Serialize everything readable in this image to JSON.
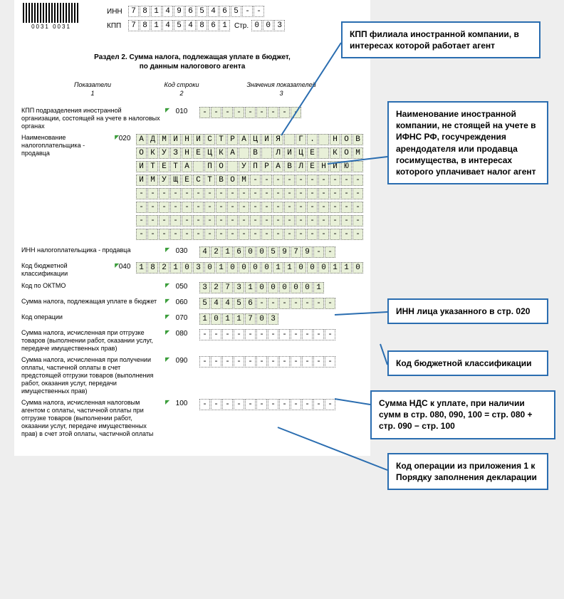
{
  "barcode_number": "0031 0031",
  "header": {
    "inn_label": "ИНН",
    "inn_value": "7814965465--",
    "kpp_label": "КПП",
    "kpp_value": "781454861",
    "str_label": "Стр.",
    "str_value": "003"
  },
  "section_title_line1": "Раздел 2. Сумма налога, подлежащая уплате в бюджет,",
  "section_title_line2": "по данным налогового агента",
  "col_headers": {
    "c1": "Показатели",
    "c2": "Код строки",
    "c3": "Значения показателей"
  },
  "col_nums": {
    "c1": "1",
    "c2": "2",
    "c3": "3"
  },
  "rows": {
    "r010": {
      "desc": "КПП подразделения иностранной организации, состоящей на учете в налоговых органах",
      "code": "010",
      "value": "---------",
      "len": 9,
      "green": true
    },
    "r020": {
      "desc": "Наименование налогоплательщика - продавца",
      "code": "020",
      "lines": [
        "АДМИНИСТРАЦИЯ Г. НОВ",
        "ОКУЗНЕЦКА В ЛИЦЕ КОМ",
        "ИТЕТА ПО УПРАВЛЕНИЮ ",
        "ИМУЩЕСТВОМ----------",
        "--------------------",
        "--------------------",
        "--------------------",
        "--------------------"
      ],
      "len": 20,
      "green": true
    },
    "r030": {
      "desc": "ИНН налогоплательщика - продавца",
      "code": "030",
      "value": "4216005979--",
      "len": 12,
      "green": true
    },
    "r040": {
      "desc": "Код бюджетной классификации",
      "code": "040",
      "value": "18210301000011000110",
      "len": 20,
      "green": true
    },
    "r050": {
      "desc": "Код по ОКТМО",
      "code": "050",
      "value": "32731000001",
      "len": 11,
      "green": true
    },
    "r060": {
      "desc": "Сумма налога, подлежащая уплате в бюджет",
      "code": "060",
      "value": "54456-------",
      "len": 12,
      "green": true
    },
    "r070": {
      "desc": "Код операции",
      "code": "070",
      "value": "1011703",
      "len": 7,
      "green": true
    },
    "r080": {
      "desc": "Сумма налога, исчисленная при отгрузке товаров (выполнении работ, оказании услуг, передаче имущественных прав)",
      "code": "080",
      "value": "------------",
      "len": 12,
      "green": false
    },
    "r090": {
      "desc": "Сумма налога, исчисленная при получении оплаты, частичной оплаты в счет предстоящей отгрузки товаров (выполнения работ, оказания услуг, передачи имущественных прав)",
      "code": "090",
      "value": "------------",
      "len": 12,
      "green": false
    },
    "r100": {
      "desc": "Сумма налога, исчисленная налоговым агентом с оплаты, частичной оплаты при отгрузке товаров (выполнении работ, оказании услуг, передаче имущественных прав) в счет этой оплаты, частичной оплаты",
      "code": "100",
      "value": "------------",
      "len": 12,
      "green": false
    }
  },
  "annotations": {
    "a1": "КПП филиала иностранной компании, в интересах которой работает агент",
    "a2": "Наименование иностранной компании, не стоящей на учете в ИФНС РФ, госучреждения арендодателя или продавца госимущества, в интересах которого уплачивает налог агент",
    "a3": "ИНН лица указанного в стр. 020",
    "a4": "Код бюджетной классификации",
    "a5": "Сумма НДС к уплате, при наличии сумм в стр. 080, 090, 100 = стр. 080 + стр. 090 − стр. 100",
    "a6": "Код операции из приложения 1 к Порядку заполнения декларации"
  },
  "ann_style": {
    "border_color": "#2a6db0",
    "bg_color": "#ffffff"
  }
}
